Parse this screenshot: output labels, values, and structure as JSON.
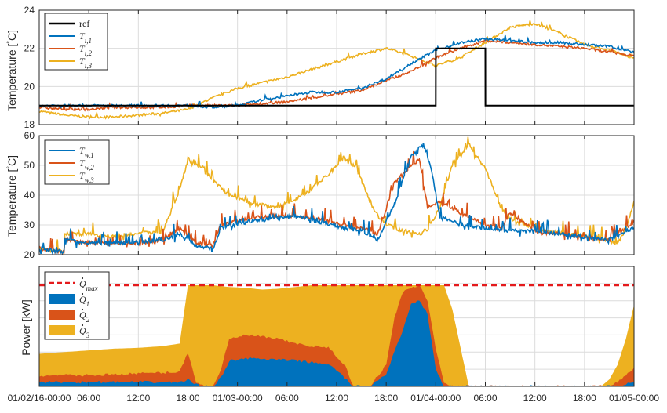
{
  "figure": {
    "xticks": [
      "01/02/16-00:00",
      "06:00",
      "12:00",
      "18:00",
      "01/03-00:00",
      "06:00",
      "12:00",
      "18:00",
      "01/04-00:00",
      "06:00",
      "12:00",
      "18:00",
      "01/05-00:00"
    ],
    "xlim_hours": [
      0,
      72
    ]
  },
  "chart_data": [
    {
      "type": "line",
      "ylabel": "Temperature [°C]",
      "ylim": [
        18,
        24
      ],
      "yticks": [
        18,
        20,
        22,
        24
      ],
      "grid": true,
      "legend_position": "top-left",
      "series": [
        {
          "name": "ref",
          "color": "#000000",
          "x": [
            0,
            0.01,
            14,
            14.01,
            48,
            48.01,
            54,
            54.01,
            60,
            60.01,
            72
          ],
          "y": [
            19,
            19,
            19,
            19,
            19,
            22,
            22,
            19,
            19,
            19,
            19
          ]
        },
        {
          "name": "T_{i,1}",
          "color": "#0072bd",
          "x": [
            0,
            3,
            6,
            9,
            12,
            15,
            18,
            21,
            24,
            27,
            30,
            33,
            36,
            39,
            42,
            45,
            48,
            51,
            54,
            57,
            60,
            63,
            66,
            69,
            72
          ],
          "y": [
            19.0,
            19.0,
            19.0,
            19.0,
            19.0,
            19.0,
            19.0,
            18.9,
            19.0,
            19.3,
            19.5,
            19.7,
            19.7,
            19.9,
            20.4,
            21.2,
            21.9,
            22.3,
            22.5,
            22.4,
            22.3,
            22.3,
            22.2,
            22.1,
            21.8
          ]
        },
        {
          "name": "T_{i,2}",
          "color": "#d95319",
          "x": [
            0,
            3,
            6,
            9,
            12,
            15,
            18,
            21,
            24,
            27,
            30,
            33,
            36,
            39,
            42,
            45,
            48,
            51,
            54,
            57,
            60,
            63,
            66,
            69,
            72
          ],
          "y": [
            18.9,
            18.8,
            18.8,
            18.9,
            18.9,
            18.9,
            19.0,
            19.0,
            19.0,
            19.1,
            19.2,
            19.4,
            19.6,
            19.8,
            20.3,
            20.8,
            21.5,
            22.0,
            22.4,
            22.3,
            22.2,
            22.1,
            22.0,
            21.8,
            21.6
          ]
        },
        {
          "name": "T_{i,3}",
          "color": "#edb120",
          "x": [
            0,
            3,
            6,
            9,
            12,
            15,
            18,
            21,
            24,
            27,
            30,
            33,
            36,
            39,
            42,
            45,
            48,
            51,
            54,
            57,
            60,
            63,
            66,
            69,
            72
          ],
          "y": [
            18.7,
            18.5,
            18.4,
            18.4,
            18.5,
            18.6,
            18.8,
            19.4,
            19.9,
            20.2,
            20.5,
            20.9,
            21.3,
            21.7,
            22.0,
            21.6,
            21.1,
            21.5,
            22.3,
            23.1,
            23.3,
            22.8,
            22.2,
            21.9,
            21.5
          ]
        }
      ]
    },
    {
      "type": "line",
      "ylabel": "Temperature [°C]",
      "ylim": [
        20,
        60
      ],
      "yticks": [
        20,
        30,
        40,
        50,
        60
      ],
      "grid": true,
      "legend_position": "top-left",
      "series": [
        {
          "name": "T_{w,1}",
          "color": "#0072bd",
          "x": [
            0,
            3,
            3.1,
            6,
            9,
            12,
            15,
            17,
            19,
            21,
            22,
            25,
            28,
            31,
            34,
            37,
            39,
            41,
            43,
            45,
            46.5,
            47.5,
            48.5,
            51,
            54,
            57,
            60,
            63,
            66,
            69,
            71,
            72
          ],
          "y": [
            22,
            21,
            25,
            24,
            24,
            24,
            25,
            27,
            23,
            22,
            29,
            31,
            32,
            33,
            31,
            29,
            28,
            25,
            37,
            53,
            57,
            48,
            33,
            30,
            29,
            28,
            28,
            27,
            26,
            25,
            28,
            29
          ]
        },
        {
          "name": "T_{w,2}",
          "color": "#d95319",
          "x": [
            0,
            3,
            3.1,
            6,
            9,
            12,
            15,
            17,
            19,
            21,
            22,
            25,
            28,
            31,
            34,
            37,
            39,
            41,
            43,
            45,
            46,
            47,
            48.5,
            51,
            54,
            56,
            57,
            60,
            63,
            66,
            69,
            71,
            72
          ],
          "y": [
            22,
            21,
            25,
            24,
            24,
            24,
            25,
            29,
            24,
            23,
            30,
            32,
            33,
            33,
            32,
            30,
            29,
            27,
            44,
            50,
            52,
            36,
            38,
            34,
            30,
            29,
            34,
            28,
            27,
            26,
            25,
            29,
            31
          ]
        },
        {
          "name": "T_{w,3}",
          "color": "#edb120",
          "x": [
            0,
            3,
            3.1,
            6,
            9,
            12,
            15,
            17,
            18,
            20,
            21,
            23,
            26,
            29,
            32,
            35,
            37,
            38,
            39,
            40,
            41,
            42,
            44,
            46,
            47,
            48.5,
            50,
            52,
            54,
            56,
            57,
            59,
            61,
            64,
            67,
            70,
            71,
            72
          ],
          "y": [
            22,
            21,
            27,
            27,
            26,
            27,
            28,
            42,
            52,
            49,
            45,
            40,
            37,
            36,
            40,
            47,
            53,
            50,
            45,
            38,
            33,
            30,
            28,
            27,
            28,
            36,
            50,
            57,
            49,
            35,
            32,
            30,
            28,
            27,
            26,
            24,
            28,
            38
          ]
        }
      ]
    },
    {
      "type": "area",
      "ylabel": "Power [kW]",
      "ylim": [
        0,
        140
      ],
      "grid": true,
      "legend_position": "top-left",
      "qmax": 118,
      "x": [
        0,
        3,
        6,
        9,
        12,
        15,
        17,
        18,
        19,
        20,
        21,
        22,
        23,
        25,
        27,
        29,
        31,
        33,
        35,
        37,
        38,
        40,
        42,
        43,
        44,
        45,
        46,
        47,
        48,
        49,
        50,
        51,
        52,
        53,
        54,
        56,
        58,
        60,
        62,
        64,
        66,
        67,
        68,
        69,
        70,
        71,
        72
      ],
      "series": [
        {
          "name": "Q_1",
          "color": "#0072bd",
          "cumulative": [
            5,
            5,
            5,
            5,
            5,
            5,
            5,
            8,
            2,
            0,
            0,
            10,
            30,
            33,
            32,
            31,
            30,
            28,
            26,
            10,
            0,
            0,
            15,
            40,
            65,
            95,
            100,
            85,
            20,
            0,
            0,
            0,
            0,
            0,
            0,
            0,
            0,
            0,
            0,
            0,
            0,
            0,
            0,
            0,
            0,
            3,
            5
          ]
        },
        {
          "name": "Q_2",
          "color": "#d95319",
          "cumulative": [
            12,
            13,
            13,
            14,
            15,
            16,
            17,
            40,
            5,
            0,
            0,
            20,
            55,
            60,
            58,
            55,
            50,
            47,
            45,
            25,
            0,
            0,
            25,
            80,
            110,
            115,
            118,
            100,
            45,
            5,
            0,
            0,
            0,
            0,
            0,
            0,
            0,
            0,
            0,
            0,
            0,
            0,
            0,
            0,
            5,
            12,
            22
          ]
        },
        {
          "name": "Q_3",
          "color": "#edb120",
          "cumulative": [
            38,
            40,
            42,
            44,
            45,
            47,
            50,
            118,
            118,
            118,
            118,
            117,
            116,
            115,
            113,
            114,
            116,
            118,
            118,
            118,
            118,
            118,
            118,
            118,
            118,
            118,
            118,
            118,
            118,
            118,
            90,
            45,
            0,
            0,
            0,
            0,
            0,
            0,
            0,
            0,
            0,
            0,
            0,
            8,
            25,
            55,
            95
          ]
        }
      ],
      "legend": [
        "Q_max",
        "Q_1",
        "Q_2",
        "Q_3"
      ]
    }
  ]
}
